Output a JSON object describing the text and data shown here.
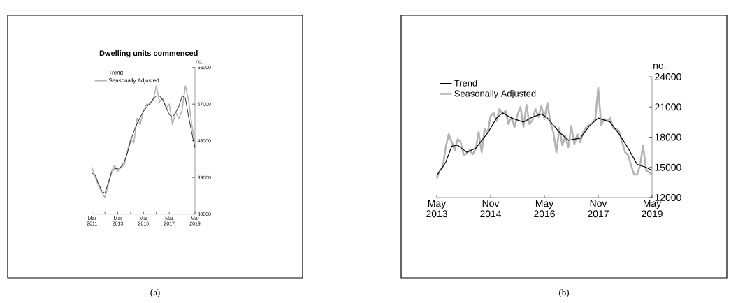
{
  "chart_data": [
    {
      "type": "line",
      "title": "Dwelling units commenced",
      "ylabel": "no.",
      "annotations": [
        "(a)"
      ],
      "legend": "top left",
      "xlim": [
        "2011-03",
        "2019-03"
      ],
      "ylim": [
        30000,
        66000
      ],
      "yticks": [
        30000,
        39000,
        48000,
        57000,
        66000
      ],
      "xticks": [
        {
          "value": "2011-03",
          "label": "Mar 2011"
        },
        {
          "value": "2012-03",
          "label": null
        },
        {
          "value": "2013-03",
          "label": "Mar 2013"
        },
        {
          "value": "2014-03",
          "label": null
        },
        {
          "value": "2015-03",
          "label": "Mar 2015"
        },
        {
          "value": "2016-03",
          "label": null
        },
        {
          "value": "2017-03",
          "label": "Mar 2017"
        },
        {
          "value": "2018-03",
          "label": null
        },
        {
          "value": "2019-03",
          "label": "Mar 2019"
        }
      ],
      "x": [
        "2011-03",
        "2011-06",
        "2011-09",
        "2011-12",
        "2012-03",
        "2012-06",
        "2012-09",
        "2012-12",
        "2013-03",
        "2013-06",
        "2013-09",
        "2013-12",
        "2014-03",
        "2014-06",
        "2014-09",
        "2014-12",
        "2015-03",
        "2015-06",
        "2015-09",
        "2015-12",
        "2016-03",
        "2016-06",
        "2016-09",
        "2016-12",
        "2017-03",
        "2017-06",
        "2017-09",
        "2017-12",
        "2018-03",
        "2018-06",
        "2018-09",
        "2018-12",
        "2019-03"
      ],
      "series": [
        {
          "name": "Trend",
          "color": "#000000",
          "values": [
            40100,
            39600,
            37500,
            35800,
            35100,
            37600,
            40000,
            41200,
            41100,
            41600,
            42800,
            45000,
            48000,
            50300,
            52200,
            53800,
            55200,
            56300,
            57200,
            58300,
            59000,
            59000,
            58000,
            56300,
            54400,
            53800,
            55000,
            56500,
            59000,
            58500,
            54000,
            50000,
            46300
          ]
        },
        {
          "name": "Seasonally Adjusted",
          "color": "#b4b4b4",
          "values": [
            41500,
            39000,
            37000,
            35500,
            34000,
            37000,
            40500,
            42000,
            40500,
            41500,
            42000,
            45500,
            48500,
            47500,
            53500,
            52000,
            55500,
            57000,
            57000,
            58000,
            61500,
            57500,
            58500,
            56000,
            57000,
            52000,
            55000,
            53500,
            55500,
            61500,
            58000,
            52000,
            47000
          ]
        }
      ]
    },
    {
      "type": "line",
      "ylabel": "no.",
      "annotations": [
        "(b)"
      ],
      "legend": "top left",
      "xlim": [
        "2013-05",
        "2019-05"
      ],
      "ylim": [
        12000,
        24000
      ],
      "yticks": [
        12000,
        15000,
        18000,
        21000,
        24000
      ],
      "xticks": [
        {
          "value": "2013-05",
          "label": "May 2013"
        },
        {
          "value": "2014-11",
          "label": "Nov 2014"
        },
        {
          "value": "2016-05",
          "label": "May 2016"
        },
        {
          "value": "2017-11",
          "label": "Nov 2017"
        },
        {
          "value": "2019-05",
          "label": "May 2019"
        }
      ],
      "series": [
        {
          "name": "Trend",
          "color": "#000000",
          "x": [
            "2013-05",
            "2013-08",
            "2013-10",
            "2013-12",
            "2014-03",
            "2014-06",
            "2014-10",
            "2015-01",
            "2015-03",
            "2015-06",
            "2015-10",
            "2016-01",
            "2016-04",
            "2016-06",
            "2016-10",
            "2017-01",
            "2017-05",
            "2017-08",
            "2017-11",
            "2018-03",
            "2018-06",
            "2018-09",
            "2018-12",
            "2019-03",
            "2019-05"
          ],
          "values": [
            14200,
            15500,
            17100,
            17200,
            16500,
            16900,
            18400,
            19900,
            20400,
            19900,
            19500,
            20000,
            20300,
            19900,
            18500,
            17700,
            17900,
            19100,
            19900,
            19500,
            18300,
            16900,
            15300,
            15000,
            14700
          ]
        },
        {
          "name": "Seasonally Adjusted",
          "color": "#b4b4b4",
          "x": [
            "2013-05",
            "2013-06",
            "2013-07",
            "2013-08",
            "2013-09",
            "2013-10",
            "2013-11",
            "2013-12",
            "2014-01",
            "2014-02",
            "2014-03",
            "2014-04",
            "2014-05",
            "2014-06",
            "2014-07",
            "2014-08",
            "2014-09",
            "2014-10",
            "2014-11",
            "2014-12",
            "2015-01",
            "2015-02",
            "2015-03",
            "2015-04",
            "2015-05",
            "2015-06",
            "2015-07",
            "2015-08",
            "2015-09",
            "2015-10",
            "2015-11",
            "2015-12",
            "2016-01",
            "2016-02",
            "2016-03",
            "2016-04",
            "2016-05",
            "2016-06",
            "2016-07",
            "2016-08",
            "2016-09",
            "2016-10",
            "2016-11",
            "2016-12",
            "2017-01",
            "2017-02",
            "2017-03",
            "2017-04",
            "2017-05",
            "2017-06",
            "2017-07",
            "2017-08",
            "2017-09",
            "2017-10",
            "2017-11",
            "2017-12",
            "2018-01",
            "2018-02",
            "2018-03",
            "2018-04",
            "2018-05",
            "2018-06",
            "2018-07",
            "2018-08",
            "2018-09",
            "2018-10",
            "2018-11",
            "2018-12",
            "2019-01",
            "2019-02",
            "2019-03",
            "2019-04",
            "2019-05"
          ],
          "values": [
            13900,
            14700,
            15000,
            17000,
            18300,
            17500,
            16700,
            17800,
            17500,
            16200,
            16400,
            16700,
            16300,
            16800,
            18500,
            16500,
            18800,
            18400,
            20100,
            20400,
            19600,
            20800,
            20300,
            20600,
            19300,
            20000,
            19000,
            20200,
            21000,
            19000,
            21200,
            19300,
            19700,
            20800,
            20000,
            21100,
            19800,
            21400,
            19500,
            18500,
            16500,
            18900,
            17200,
            18100,
            17000,
            19100,
            17300,
            18300,
            17500,
            18500,
            19000,
            19200,
            19400,
            19800,
            22900,
            19200,
            19800,
            19600,
            19900,
            18900,
            18800,
            18600,
            17500,
            16500,
            16200,
            15200,
            14300,
            14300,
            15200,
            17200,
            14700,
            14500,
            14300
          ]
        }
      ]
    }
  ]
}
